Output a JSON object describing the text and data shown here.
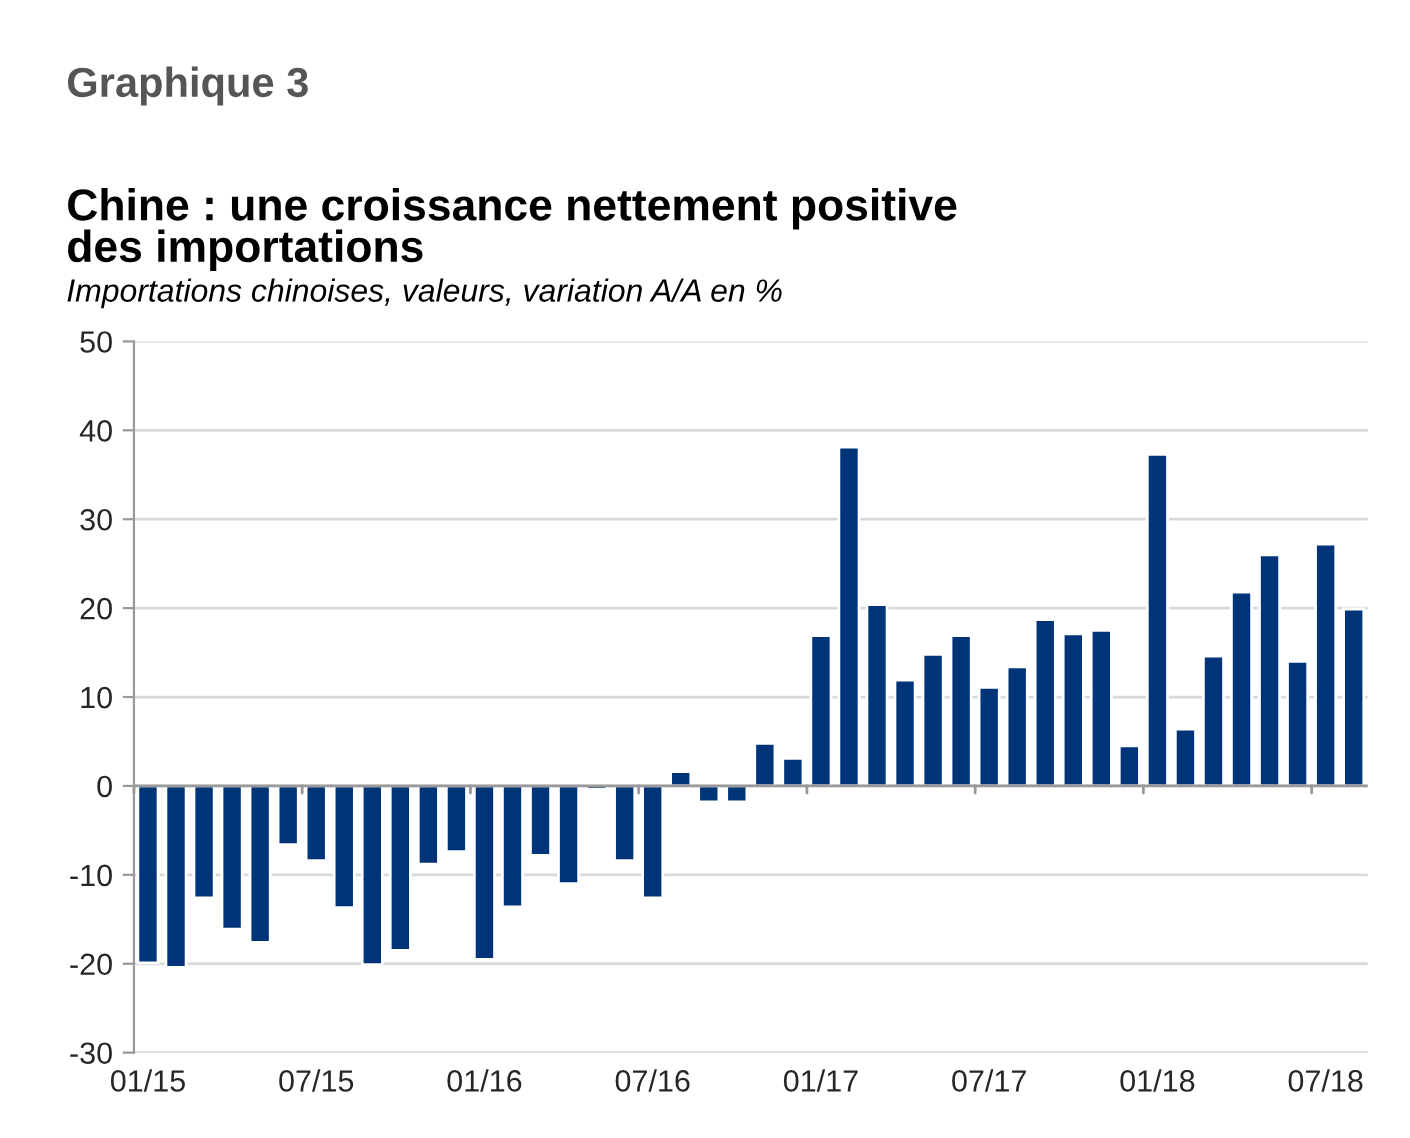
{
  "chart_data": {
    "type": "bar",
    "title": "Chine : une croissance nettement positive\ndes importations",
    "subtitle": "Importations chinoises, valeurs, variation A/A en %",
    "annotations": [
      "Graphique 3"
    ],
    "categories": [
      "01/15",
      null,
      null,
      null,
      null,
      null,
      "07/15",
      null,
      null,
      null,
      null,
      null,
      "01/16",
      null,
      null,
      null,
      null,
      null,
      "07/16",
      null,
      null,
      null,
      null,
      null,
      "01/17",
      null,
      null,
      null,
      null,
      null,
      "07/17",
      null,
      null,
      null,
      null,
      null,
      "01/18",
      null,
      null,
      null,
      null,
      null,
      "07/18",
      null
    ],
    "values": [
      -19.9,
      -20.4,
      -12.6,
      -16.1,
      -17.6,
      -6.6,
      -8.4,
      -13.7,
      -20.1,
      -18.5,
      -8.8,
      -7.4,
      -19.5,
      -13.6,
      -7.8,
      -11.0,
      -0.4,
      -8.4,
      -12.6,
      1.6,
      -1.8,
      -1.8,
      4.8,
      3.1,
      16.9,
      38.1,
      20.4,
      11.9,
      14.8,
      16.9,
      11.1,
      13.4,
      18.7,
      17.1,
      17.5,
      4.5,
      37.3,
      6.4,
      14.6,
      21.8,
      26.0,
      14.0,
      27.2,
      19.9
    ],
    "color": "#003478",
    "ylim": [
      -30,
      50
    ],
    "yticks": [
      -30,
      -20,
      -10,
      0,
      10,
      20,
      30,
      40,
      50
    ],
    "grid": "y"
  }
}
